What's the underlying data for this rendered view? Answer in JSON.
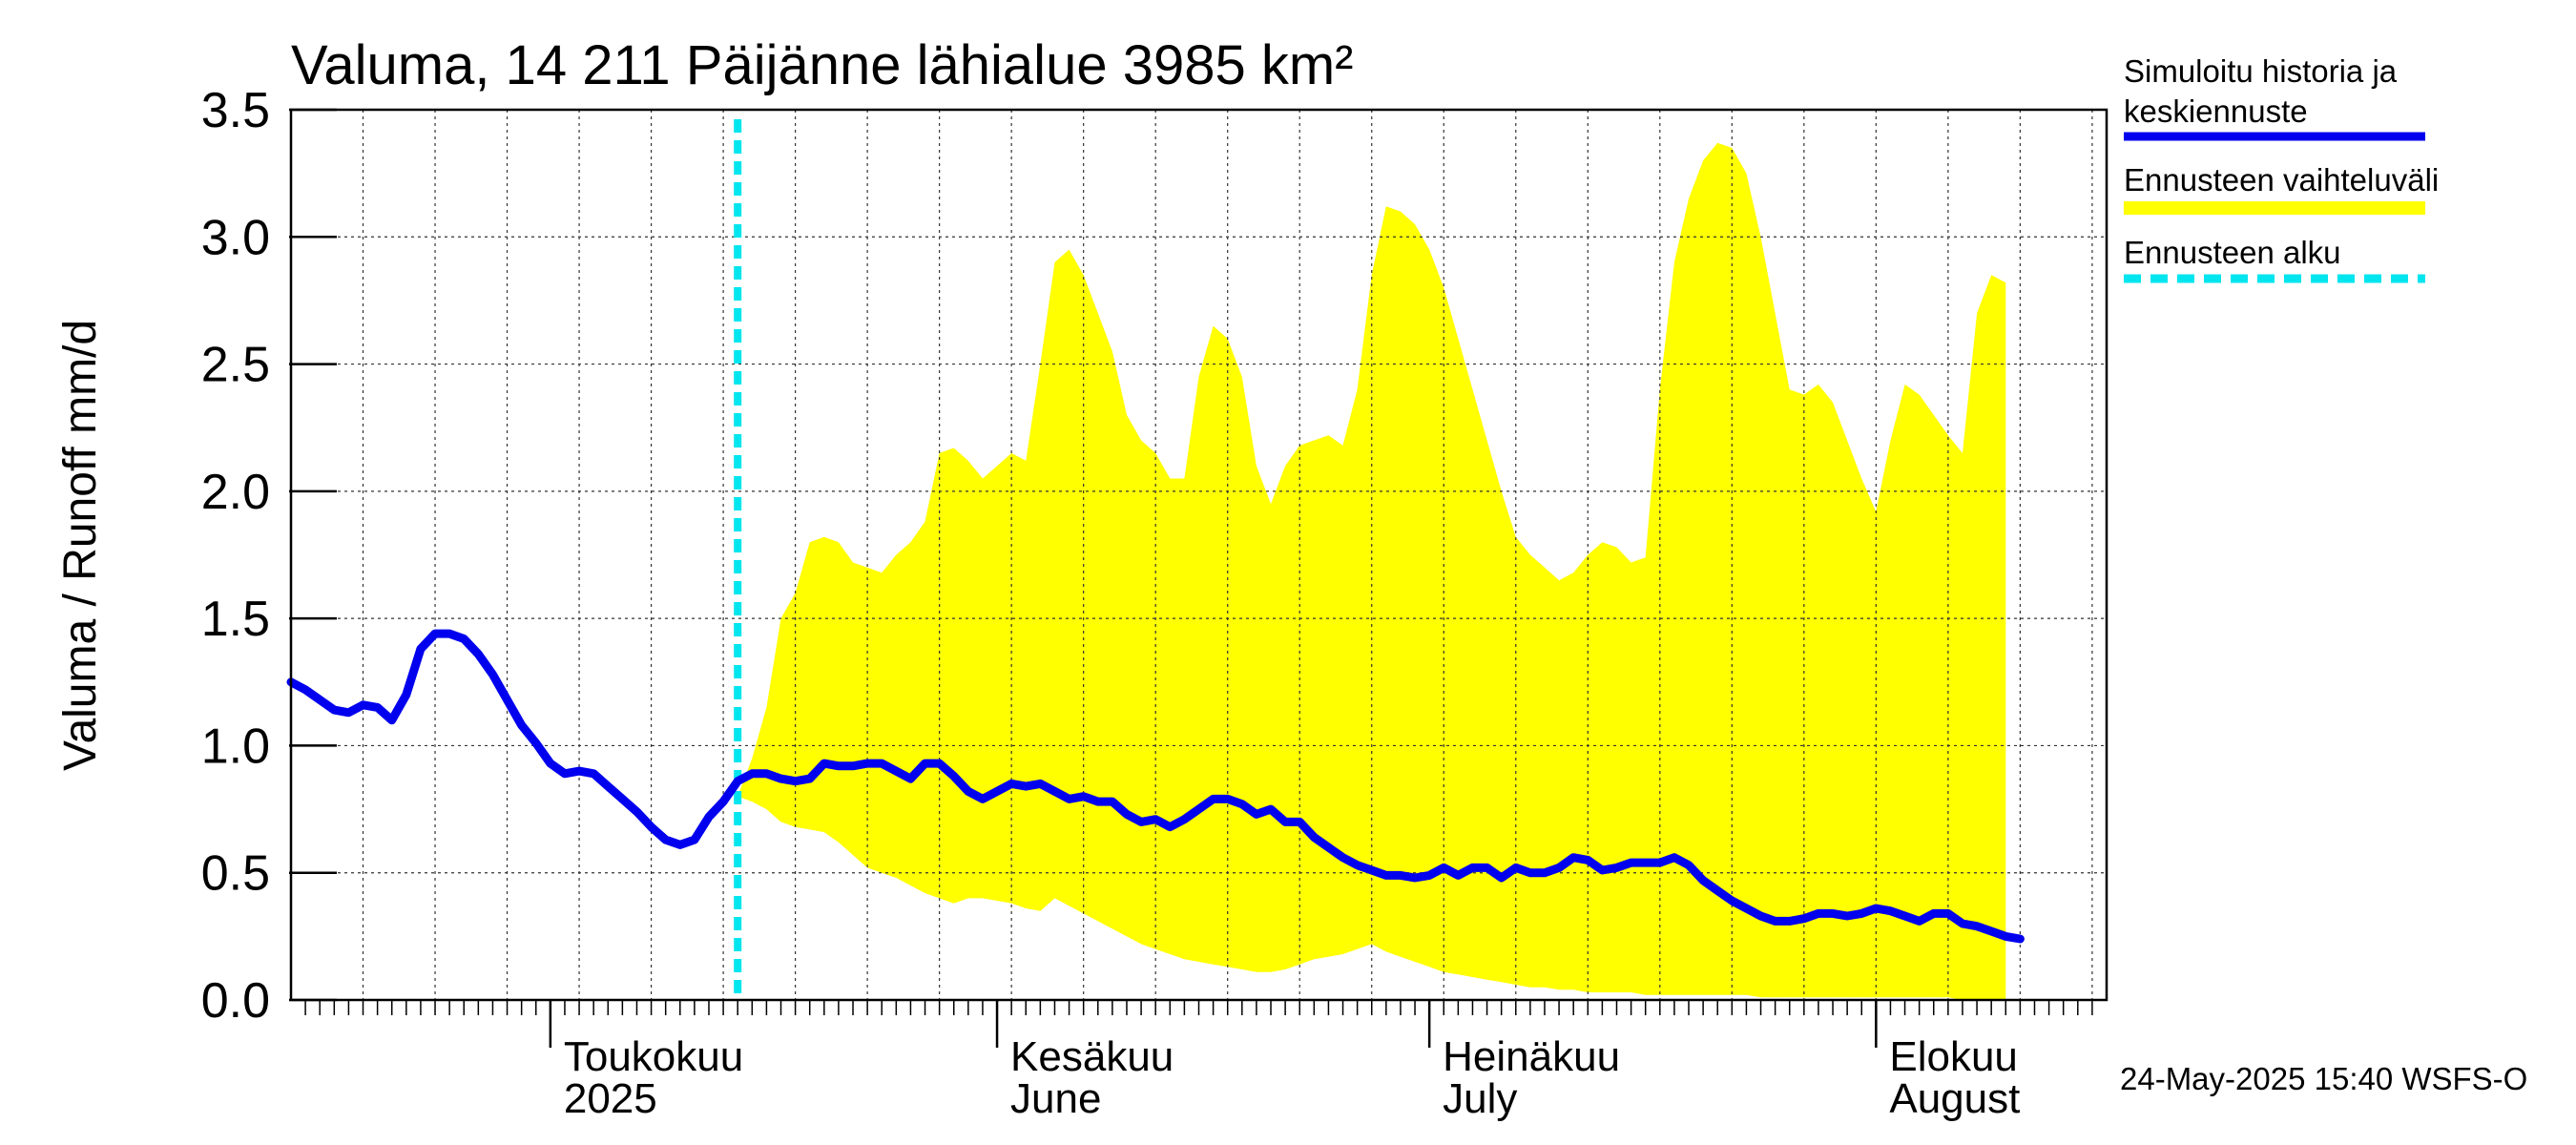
{
  "chart_data": {
    "type": "area",
    "title": "Valuma, 14 211 Päijänne lähialue 3985 km²",
    "ylabel": "Valuma / Runoff    mm/d",
    "ylim": [
      0,
      3.5
    ],
    "y_ticks": [
      "0.0",
      "0.5",
      "1.0",
      "1.5",
      "2.0",
      "2.5",
      "3.0",
      "3.5"
    ],
    "x_range_day": [
      0,
      126
    ],
    "x_note": "day 0 = 2025-04-13",
    "months": [
      {
        "fi": "Toukokuu",
        "en": "2025",
        "day": 18
      },
      {
        "fi": "Kesäkuu",
        "en": "June",
        "day": 49
      },
      {
        "fi": "Heinäkuu",
        "en": "July",
        "day": 79
      },
      {
        "fi": "Elokuu",
        "en": "August",
        "day": 110
      }
    ],
    "forecast_start_day": 31,
    "legend": {
      "history": "Simuloitu historia ja keskiennuste",
      "range": "Ennusteen vaihteluväli",
      "start": "Ennusteen alku"
    },
    "colors": {
      "history": "#0000ee",
      "range": "#ffff00",
      "start": "#00e5ee"
    },
    "timestamp": "24-May-2025 15:40 WSFS-O",
    "band_upper": [
      [
        31,
        0.8
      ],
      [
        32,
        0.95
      ],
      [
        33,
        1.15
      ],
      [
        34,
        1.5
      ],
      [
        35,
        1.6
      ],
      [
        36,
        1.8
      ],
      [
        37,
        1.82
      ],
      [
        38,
        1.8
      ],
      [
        39,
        1.72
      ],
      [
        40,
        1.7
      ],
      [
        41,
        1.68
      ],
      [
        42,
        1.75
      ],
      [
        43,
        1.8
      ],
      [
        44,
        1.88
      ],
      [
        45,
        2.15
      ],
      [
        46,
        2.17
      ],
      [
        47,
        2.12
      ],
      [
        48,
        2.05
      ],
      [
        49,
        2.1
      ],
      [
        50,
        2.15
      ],
      [
        51,
        2.12
      ],
      [
        52,
        2.5
      ],
      [
        53,
        2.9
      ],
      [
        54,
        2.95
      ],
      [
        55,
        2.85
      ],
      [
        56,
        2.7
      ],
      [
        57,
        2.55
      ],
      [
        58,
        2.3
      ],
      [
        59,
        2.2
      ],
      [
        60,
        2.15
      ],
      [
        61,
        2.05
      ],
      [
        62,
        2.05
      ],
      [
        63,
        2.45
      ],
      [
        64,
        2.65
      ],
      [
        65,
        2.6
      ],
      [
        66,
        2.45
      ],
      [
        67,
        2.1
      ],
      [
        68,
        1.95
      ],
      [
        69,
        2.1
      ],
      [
        70,
        2.18
      ],
      [
        71,
        2.2
      ],
      [
        72,
        2.22
      ],
      [
        73,
        2.18
      ],
      [
        74,
        2.4
      ],
      [
        75,
        2.85
      ],
      [
        76,
        3.12
      ],
      [
        77,
        3.1
      ],
      [
        78,
        3.05
      ],
      [
        79,
        2.95
      ],
      [
        80,
        2.8
      ],
      [
        81,
        2.6
      ],
      [
        82,
        2.4
      ],
      [
        83,
        2.2
      ],
      [
        84,
        2.0
      ],
      [
        85,
        1.82
      ],
      [
        86,
        1.75
      ],
      [
        87,
        1.7
      ],
      [
        88,
        1.65
      ],
      [
        89,
        1.68
      ],
      [
        90,
        1.75
      ],
      [
        91,
        1.8
      ],
      [
        92,
        1.78
      ],
      [
        93,
        1.72
      ],
      [
        94,
        1.74
      ],
      [
        95,
        2.4
      ],
      [
        96,
        2.9
      ],
      [
        97,
        3.15
      ],
      [
        98,
        3.3
      ],
      [
        99,
        3.37
      ],
      [
        100,
        3.35
      ],
      [
        101,
        3.25
      ],
      [
        102,
        3.0
      ],
      [
        103,
        2.7
      ],
      [
        104,
        2.4
      ],
      [
        105,
        2.38
      ],
      [
        106,
        2.42
      ],
      [
        107,
        2.35
      ],
      [
        108,
        2.2
      ],
      [
        109,
        2.05
      ],
      [
        110,
        1.92
      ],
      [
        111,
        2.2
      ],
      [
        112,
        2.42
      ],
      [
        113,
        2.38
      ],
      [
        114,
        2.3
      ],
      [
        115,
        2.22
      ],
      [
        116,
        2.15
      ],
      [
        117,
        2.7
      ],
      [
        118,
        2.85
      ],
      [
        119,
        2.82
      ]
    ],
    "band_lower": [
      [
        31,
        0.8
      ],
      [
        32,
        0.78
      ],
      [
        33,
        0.75
      ],
      [
        34,
        0.7
      ],
      [
        35,
        0.68
      ],
      [
        36,
        0.67
      ],
      [
        37,
        0.66
      ],
      [
        38,
        0.62
      ],
      [
        39,
        0.57
      ],
      [
        40,
        0.52
      ],
      [
        41,
        0.5
      ],
      [
        42,
        0.48
      ],
      [
        43,
        0.45
      ],
      [
        44,
        0.42
      ],
      [
        45,
        0.4
      ],
      [
        46,
        0.38
      ],
      [
        47,
        0.4
      ],
      [
        48,
        0.4
      ],
      [
        49,
        0.39
      ],
      [
        50,
        0.38
      ],
      [
        51,
        0.36
      ],
      [
        52,
        0.35
      ],
      [
        53,
        0.4
      ],
      [
        54,
        0.37
      ],
      [
        55,
        0.34
      ],
      [
        56,
        0.31
      ],
      [
        57,
        0.28
      ],
      [
        58,
        0.25
      ],
      [
        59,
        0.22
      ],
      [
        60,
        0.2
      ],
      [
        61,
        0.18
      ],
      [
        62,
        0.16
      ],
      [
        63,
        0.15
      ],
      [
        64,
        0.14
      ],
      [
        65,
        0.13
      ],
      [
        66,
        0.12
      ],
      [
        67,
        0.11
      ],
      [
        68,
        0.11
      ],
      [
        69,
        0.12
      ],
      [
        70,
        0.14
      ],
      [
        71,
        0.16
      ],
      [
        72,
        0.17
      ],
      [
        73,
        0.18
      ],
      [
        74,
        0.2
      ],
      [
        75,
        0.22
      ],
      [
        76,
        0.19
      ],
      [
        77,
        0.17
      ],
      [
        78,
        0.15
      ],
      [
        79,
        0.13
      ],
      [
        80,
        0.11
      ],
      [
        81,
        0.1
      ],
      [
        82,
        0.09
      ],
      [
        83,
        0.08
      ],
      [
        84,
        0.07
      ],
      [
        85,
        0.06
      ],
      [
        86,
        0.05
      ],
      [
        87,
        0.05
      ],
      [
        88,
        0.04
      ],
      [
        89,
        0.04
      ],
      [
        90,
        0.03
      ],
      [
        91,
        0.03
      ],
      [
        92,
        0.03
      ],
      [
        93,
        0.03
      ],
      [
        94,
        0.02
      ],
      [
        95,
        0.02
      ],
      [
        96,
        0.02
      ],
      [
        97,
        0.02
      ],
      [
        98,
        0.02
      ],
      [
        99,
        0.02
      ],
      [
        100,
        0.02
      ],
      [
        101,
        0.02
      ],
      [
        102,
        0.01
      ],
      [
        103,
        0.01
      ],
      [
        104,
        0.01
      ],
      [
        105,
        0.01
      ],
      [
        106,
        0.01
      ],
      [
        107,
        0.01
      ],
      [
        108,
        0.01
      ],
      [
        109,
        0.01
      ],
      [
        110,
        0.01
      ],
      [
        111,
        0.01
      ],
      [
        112,
        0.01
      ],
      [
        113,
        0.01
      ],
      [
        114,
        0.01
      ],
      [
        115,
        0.01
      ],
      [
        116,
        0.0
      ],
      [
        117,
        0.0
      ],
      [
        118,
        0.0
      ],
      [
        119,
        0.0
      ]
    ],
    "history": [
      [
        0,
        1.25
      ],
      [
        1,
        1.22
      ],
      [
        2,
        1.18
      ],
      [
        3,
        1.14
      ],
      [
        4,
        1.13
      ],
      [
        5,
        1.16
      ],
      [
        6,
        1.15
      ],
      [
        7,
        1.1
      ],
      [
        8,
        1.2
      ],
      [
        9,
        1.38
      ],
      [
        10,
        1.44
      ],
      [
        11,
        1.44
      ],
      [
        12,
        1.42
      ],
      [
        13,
        1.36
      ],
      [
        14,
        1.28
      ],
      [
        15,
        1.18
      ],
      [
        16,
        1.08
      ],
      [
        17,
        1.01
      ],
      [
        18,
        0.93
      ],
      [
        19,
        0.89
      ],
      [
        20,
        0.9
      ],
      [
        21,
        0.89
      ],
      [
        22,
        0.84
      ],
      [
        23,
        0.79
      ],
      [
        24,
        0.74
      ],
      [
        25,
        0.68
      ],
      [
        26,
        0.63
      ],
      [
        27,
        0.61
      ],
      [
        28,
        0.63
      ],
      [
        29,
        0.72
      ],
      [
        30,
        0.78
      ],
      [
        31,
        0.86
      ],
      [
        32,
        0.89
      ],
      [
        33,
        0.89
      ],
      [
        34,
        0.87
      ],
      [
        35,
        0.86
      ],
      [
        36,
        0.87
      ],
      [
        37,
        0.93
      ],
      [
        38,
        0.92
      ],
      [
        39,
        0.92
      ],
      [
        40,
        0.93
      ],
      [
        41,
        0.93
      ],
      [
        42,
        0.9
      ],
      [
        43,
        0.87
      ],
      [
        44,
        0.93
      ],
      [
        45,
        0.93
      ],
      [
        46,
        0.88
      ],
      [
        47,
        0.82
      ],
      [
        48,
        0.79
      ],
      [
        49,
        0.82
      ],
      [
        50,
        0.85
      ],
      [
        51,
        0.84
      ],
      [
        52,
        0.85
      ],
      [
        53,
        0.82
      ],
      [
        54,
        0.79
      ],
      [
        55,
        0.8
      ],
      [
        56,
        0.78
      ],
      [
        57,
        0.78
      ],
      [
        58,
        0.73
      ],
      [
        59,
        0.7
      ],
      [
        60,
        0.71
      ],
      [
        61,
        0.68
      ],
      [
        62,
        0.71
      ],
      [
        63,
        0.75
      ],
      [
        64,
        0.79
      ],
      [
        65,
        0.79
      ],
      [
        66,
        0.77
      ],
      [
        67,
        0.73
      ],
      [
        68,
        0.75
      ],
      [
        69,
        0.7
      ],
      [
        70,
        0.7
      ],
      [
        71,
        0.64
      ],
      [
        72,
        0.6
      ],
      [
        73,
        0.56
      ],
      [
        74,
        0.53
      ],
      [
        75,
        0.51
      ],
      [
        76,
        0.49
      ],
      [
        77,
        0.49
      ],
      [
        78,
        0.48
      ],
      [
        79,
        0.49
      ],
      [
        80,
        0.52
      ],
      [
        81,
        0.49
      ],
      [
        82,
        0.52
      ],
      [
        83,
        0.52
      ],
      [
        84,
        0.48
      ],
      [
        85,
        0.52
      ],
      [
        86,
        0.5
      ],
      [
        87,
        0.5
      ],
      [
        88,
        0.52
      ],
      [
        89,
        0.56
      ],
      [
        90,
        0.55
      ],
      [
        91,
        0.51
      ],
      [
        92,
        0.52
      ],
      [
        93,
        0.54
      ],
      [
        94,
        0.54
      ],
      [
        95,
        0.54
      ],
      [
        96,
        0.56
      ],
      [
        97,
        0.53
      ],
      [
        98,
        0.47
      ],
      [
        99,
        0.43
      ],
      [
        100,
        0.39
      ],
      [
        101,
        0.36
      ],
      [
        102,
        0.33
      ],
      [
        103,
        0.31
      ],
      [
        104,
        0.31
      ],
      [
        105,
        0.32
      ],
      [
        106,
        0.34
      ],
      [
        107,
        0.34
      ],
      [
        108,
        0.33
      ],
      [
        109,
        0.34
      ],
      [
        110,
        0.36
      ],
      [
        111,
        0.35
      ],
      [
        112,
        0.33
      ],
      [
        113,
        0.31
      ],
      [
        114,
        0.34
      ],
      [
        115,
        0.34
      ],
      [
        116,
        0.3
      ],
      [
        117,
        0.29
      ],
      [
        118,
        0.27
      ],
      [
        119,
        0.25
      ],
      [
        120,
        0.24
      ]
    ]
  }
}
